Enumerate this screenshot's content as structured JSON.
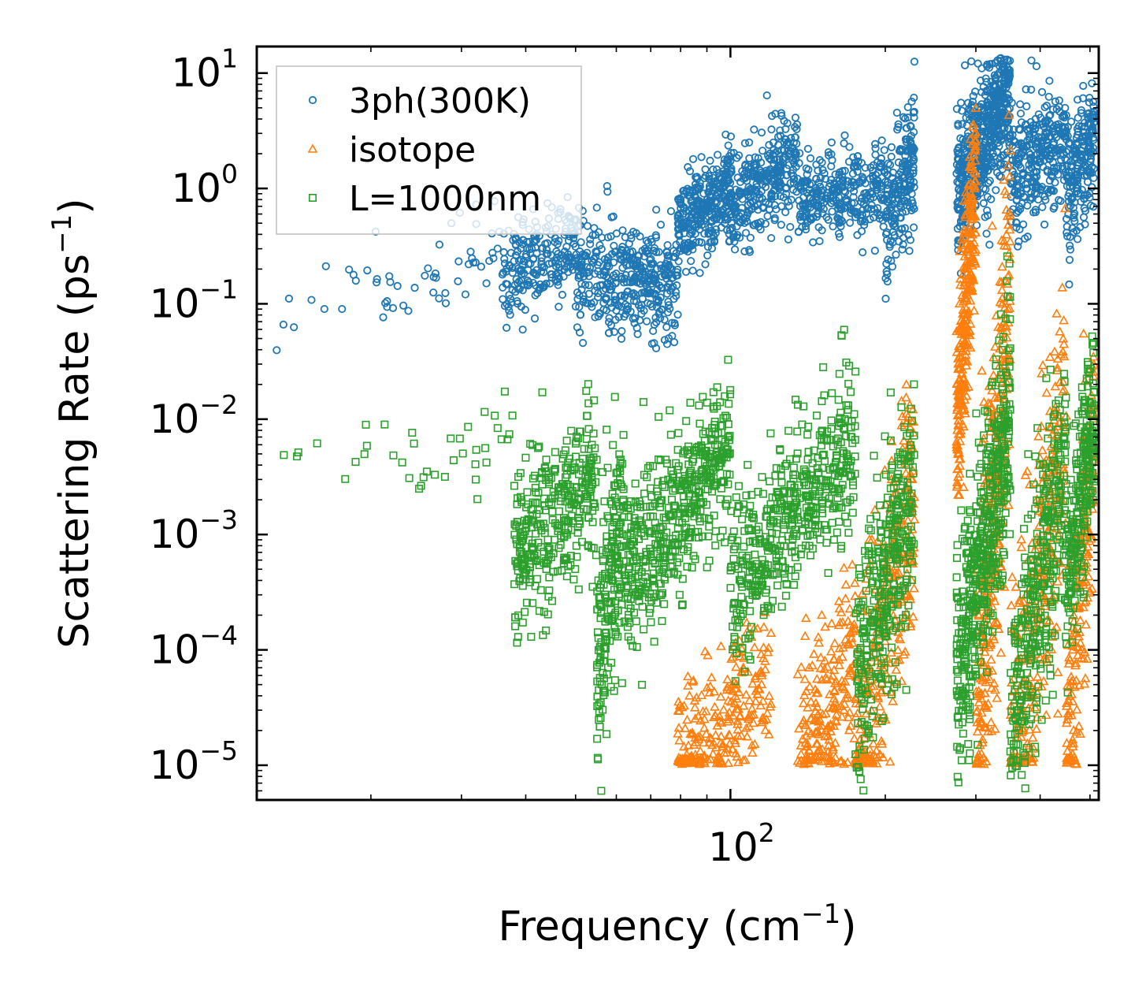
{
  "chart_data": {
    "type": "scatter",
    "title": "",
    "xlabel": "Frequency (cm",
    "xlabel_sup": "−1",
    "xlabel_end": ")",
    "ylabel": "Scattering Rate (ps",
    "ylabel_sup": "−1",
    "ylabel_end": ")",
    "xscale": "log",
    "yscale": "log",
    "xlim": [
      12,
      520
    ],
    "ylim": [
      5e-06,
      17
    ],
    "x_major_ticks": [
      {
        "value": 100,
        "base": "10",
        "exp": "2"
      }
    ],
    "y_major_ticks": [
      {
        "value": 10,
        "base": "10",
        "exp": "1"
      },
      {
        "value": 1,
        "base": "10",
        "exp": "0"
      },
      {
        "value": 0.1,
        "base": "10",
        "exp": "−1"
      },
      {
        "value": 0.01,
        "base": "10",
        "exp": "−2"
      },
      {
        "value": 0.001,
        "base": "10",
        "exp": "−3"
      },
      {
        "value": 0.0001,
        "base": "10",
        "exp": "−4"
      },
      {
        "value": 1e-05,
        "base": "10",
        "exp": "−5"
      }
    ],
    "legend_position": "top-left",
    "grid": false,
    "series": [
      {
        "name": "3ph(300K)",
        "color": "#1f77b4",
        "marker": "circle",
        "segments": [
          {
            "x": [
              13,
              20
            ],
            "y": [
              0.08,
              0.22
            ],
            "n": 12,
            "spread": 0.25
          },
          {
            "x": [
              20,
              36
            ],
            "y": [
              0.12,
              0.32
            ],
            "n": 45,
            "spread": 0.22
          },
          {
            "x": [
              36,
              50
            ],
            "y": [
              0.16,
              0.35
            ],
            "n": 220,
            "spread": 0.2
          },
          {
            "x": [
              50,
              79
            ],
            "y": [
              0.2,
              0.13
            ],
            "n": 400,
            "spread": 0.25
          },
          {
            "x": [
              79,
              100
            ],
            "y": [
              0.45,
              1.0
            ],
            "n": 300,
            "spread": 0.2
          },
          {
            "x": [
              100,
              135
            ],
            "y": [
              0.7,
              1.6
            ],
            "n": 300,
            "spread": 0.22
          },
          {
            "x": [
              135,
              200
            ],
            "y": [
              0.8,
              1.1
            ],
            "n": 300,
            "spread": 0.18
          },
          {
            "x": [
              200,
              228
            ],
            "y": [
              0.5,
              2.0
            ],
            "n": 200,
            "spread": 0.3
          },
          {
            "x": [
              275,
              350
            ],
            "y": [
              0.9,
              8.0
            ],
            "n": 600,
            "spread": 0.32
          },
          {
            "x": [
              350,
              450
            ],
            "y": [
              1.2,
              3.2
            ],
            "n": 300,
            "spread": 0.25
          },
          {
            "x": [
              450,
              510
            ],
            "y": [
              0.8,
              3.0
            ],
            "n": 200,
            "spread": 0.3
          }
        ]
      },
      {
        "name": "isotope",
        "color": "#ff7f0e",
        "marker": "triangle",
        "segments": [
          {
            "x": [
              79,
              120
            ],
            "y": [
              1.05e-05,
              5e-05
            ],
            "n": 250,
            "spread": 0.35
          },
          {
            "x": [
              135,
              175
            ],
            "y": [
              1.05e-05,
              0.00011
            ],
            "n": 200,
            "spread": 0.4
          },
          {
            "x": [
              175,
              228
            ],
            "y": [
              1.05e-05,
              0.0025
            ],
            "n": 350,
            "spread": 0.6
          },
          {
            "x": [
              275,
              300
            ],
            "y": [
              0.01,
              0.9
            ],
            "n": 300,
            "spread": 0.45
          },
          {
            "x": [
              300,
              350
            ],
            "y": [
              2e-05,
              0.12
            ],
            "n": 350,
            "spread": 0.8
          },
          {
            "x": [
              350,
              450
            ],
            "y": [
              1.05e-05,
              0.01
            ],
            "n": 300,
            "spread": 0.7
          },
          {
            "x": [
              450,
              510
            ],
            "y": [
              1.05e-05,
              0.01
            ],
            "n": 200,
            "spread": 0.6
          }
        ]
      },
      {
        "name": "L=1000nm",
        "color": "#2ca02c",
        "marker": "square",
        "segments": [
          {
            "x": [
              13,
              22
            ],
            "y": [
              0.004,
              0.0068
            ],
            "n": 10,
            "spread": 0.12
          },
          {
            "x": [
              22,
              38
            ],
            "y": [
              0.003,
              0.008
            ],
            "n": 30,
            "spread": 0.2
          },
          {
            "x": [
              38,
              55
            ],
            "y": [
              0.0006,
              0.003
            ],
            "n": 350,
            "spread": 0.35
          },
          {
            "x": [
              55,
              62
            ],
            "y": [
              8e-05,
              0.0015
            ],
            "n": 200,
            "spread": 0.5
          },
          {
            "x": [
              62,
              100
            ],
            "y": [
              0.0004,
              0.006
            ],
            "n": 500,
            "spread": 0.35
          },
          {
            "x": [
              100,
              175
            ],
            "y": [
              0.0004,
              0.006
            ],
            "n": 500,
            "spread": 0.35
          },
          {
            "x": [
              175,
              228
            ],
            "y": [
              5e-05,
              0.003
            ],
            "n": 350,
            "spread": 0.5
          },
          {
            "x": [
              275,
              350
            ],
            "y": [
              5e-05,
              0.01
            ],
            "n": 500,
            "spread": 0.5
          },
          {
            "x": [
              350,
              450
            ],
            "y": [
              2e-05,
              0.006
            ],
            "n": 350,
            "spread": 0.55
          },
          {
            "x": [
              450,
              510
            ],
            "y": [
              0.0003,
              0.011
            ],
            "n": 250,
            "spread": 0.4
          }
        ]
      }
    ]
  }
}
